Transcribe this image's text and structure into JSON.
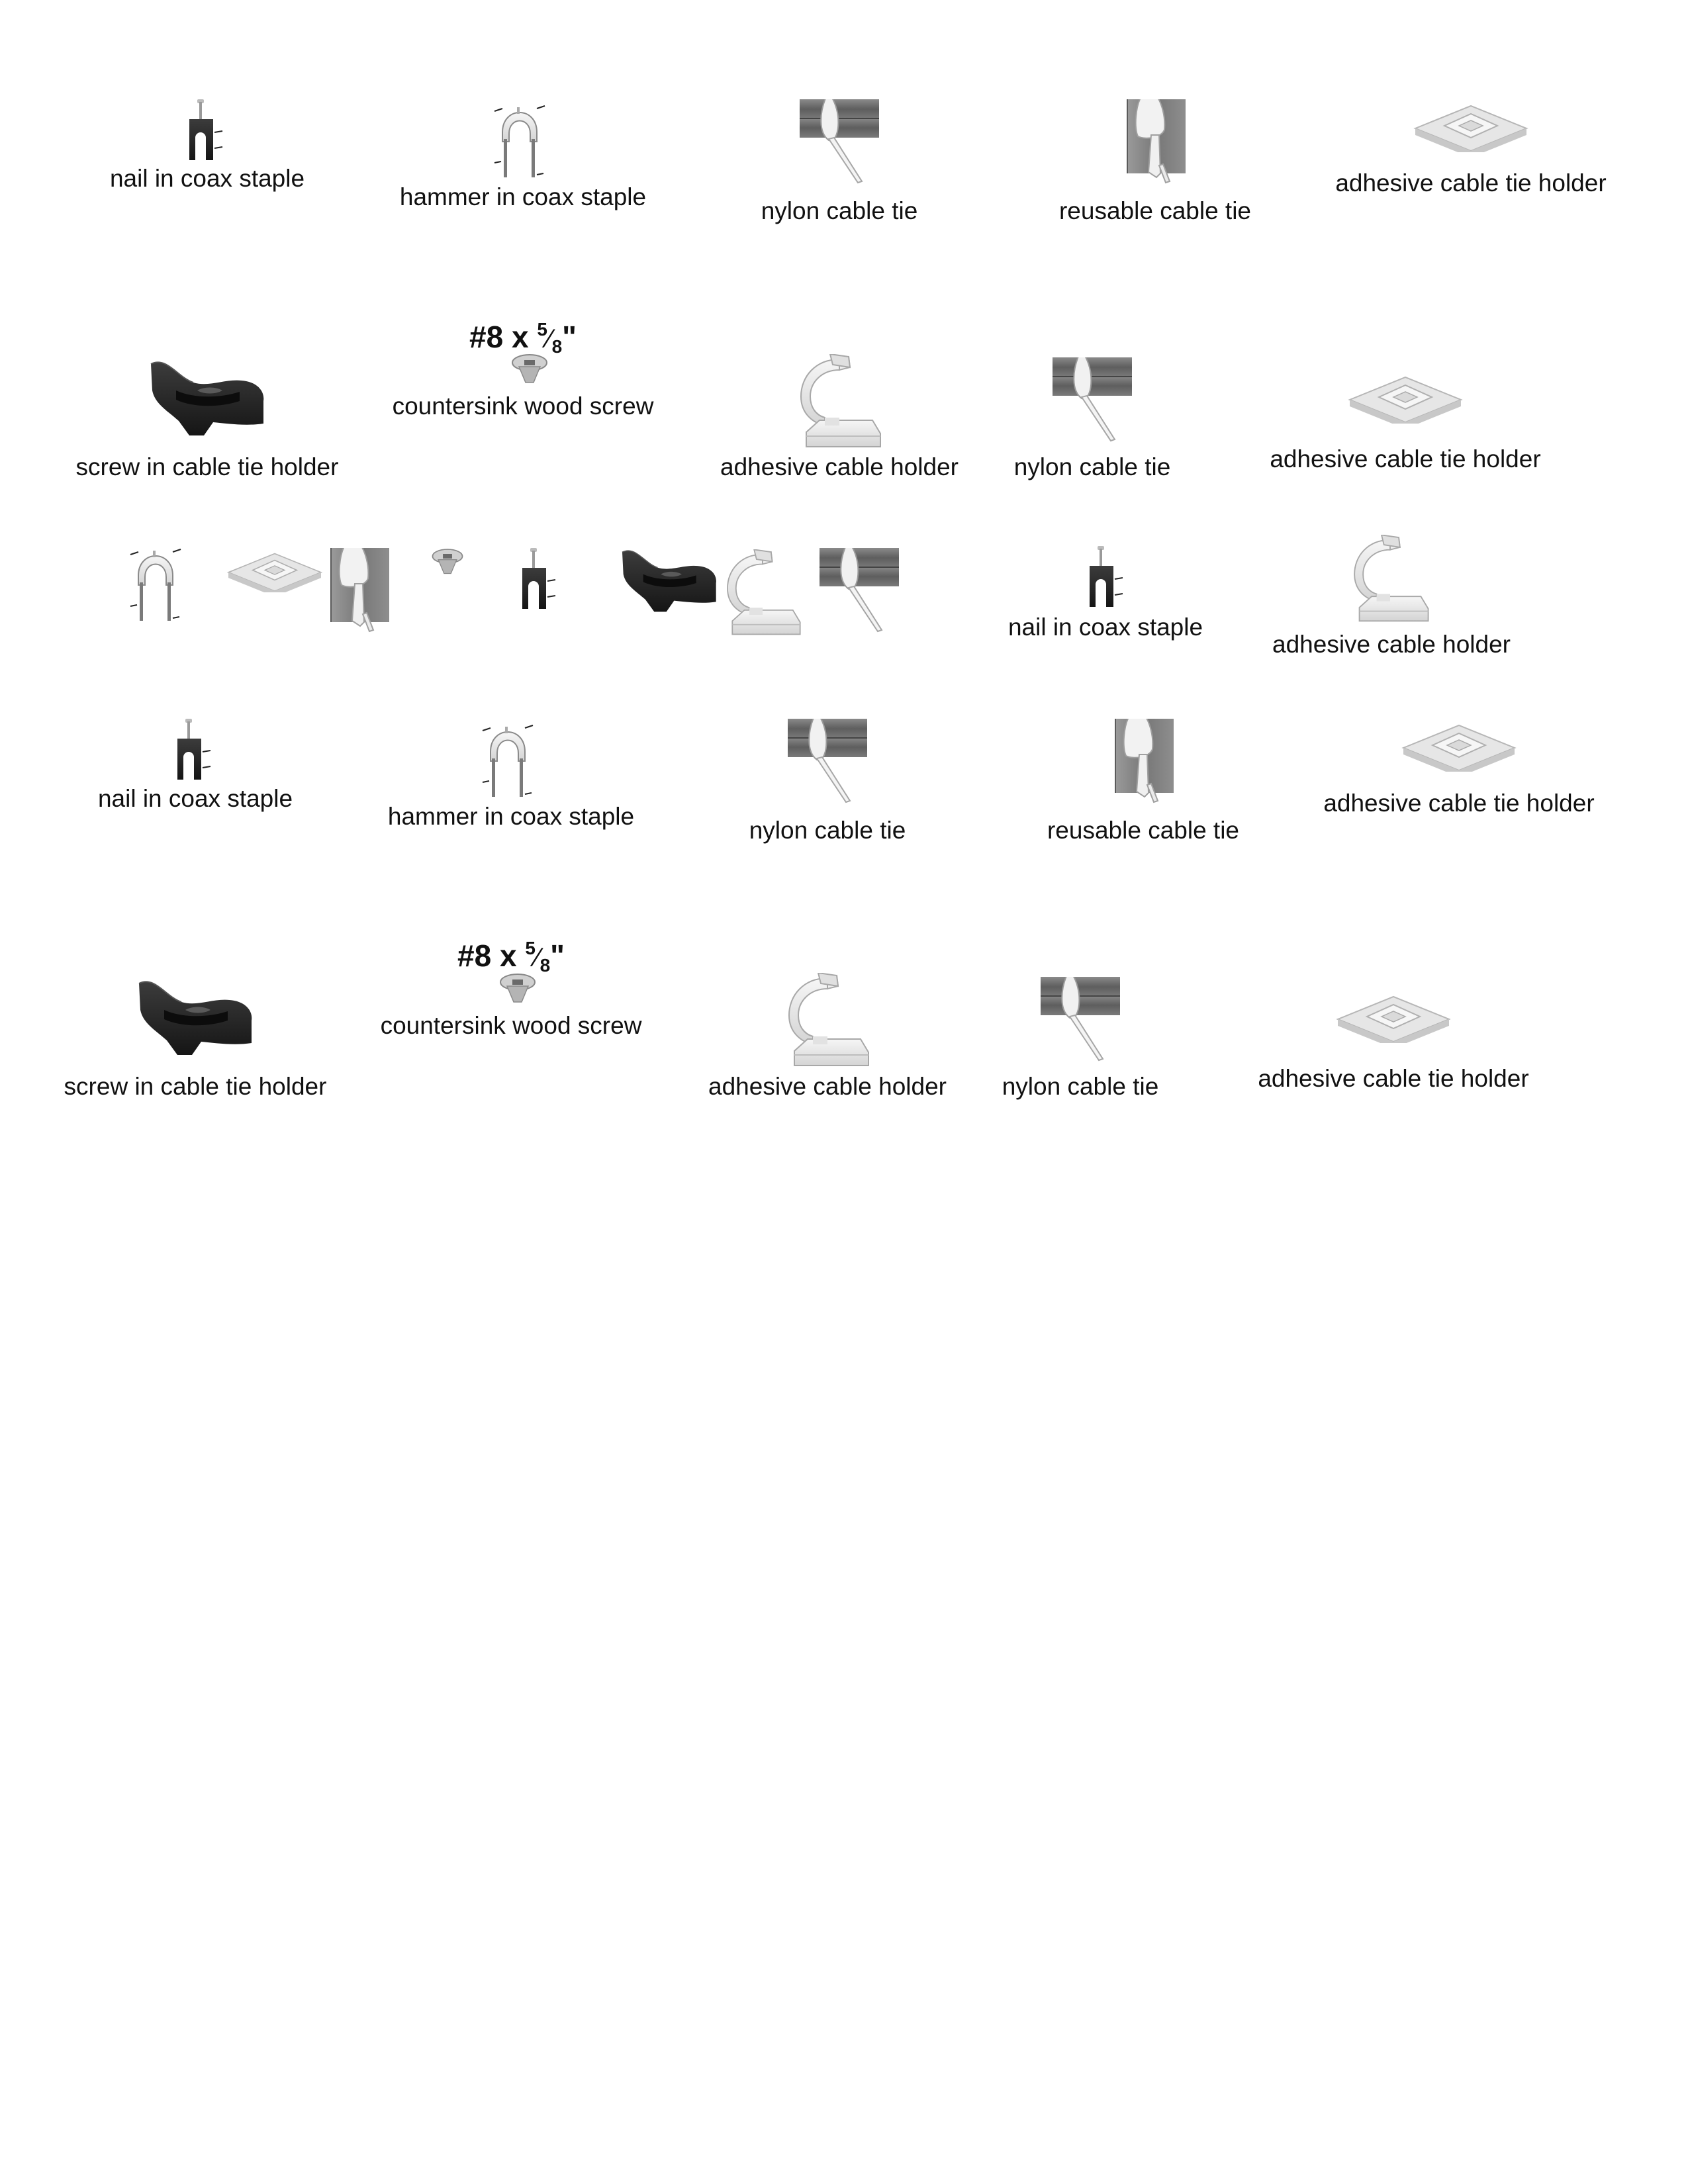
{
  "labels": {
    "nail": "nail in coax staple",
    "hammer": "hammer in coax staple",
    "nylon": "nylon cable tie",
    "reusable": "reusable cable tie",
    "adh_tie": "adhesive cable tie holder",
    "screw_holder": "screw in cable tie holder",
    "screw": "countersink wood screw",
    "adh_holder": "adhesive cable holder"
  },
  "screw_spec": {
    "prefix": "#8 x ",
    "numerator": "5",
    "slash": "⁄",
    "denominator": "8",
    "suffix": "\""
  },
  "icons": {
    "nail": "nail-in-coax-staple-icon",
    "hammer": "hammer-in-coax-staple-icon",
    "nylon": "nylon-cable-tie-icon",
    "reusable": "reusable-cable-tie-icon",
    "adh_tie": "adhesive-cable-tie-holder-icon",
    "screw_holder": "screw-in-cable-tie-holder-icon",
    "screw": "countersink-wood-screw-icon",
    "adh_holder": "adhesive-cable-holder-icon"
  },
  "colors": {
    "dark_part": "#2b2b2b",
    "white_part": "#ececec",
    "cable": "#6e6e6e"
  }
}
